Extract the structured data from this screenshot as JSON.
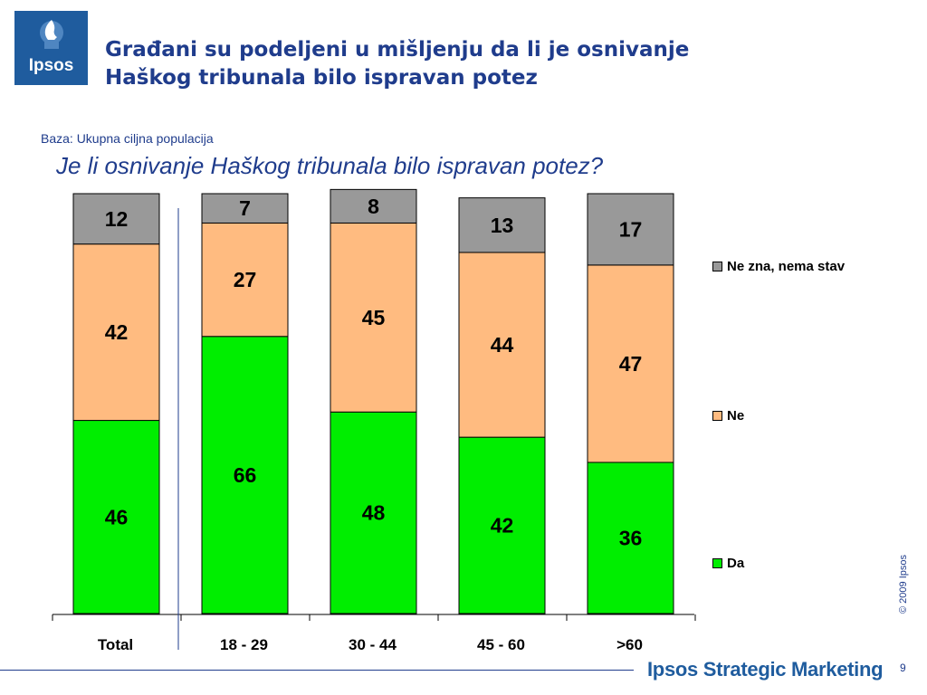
{
  "logo": {
    "text": "Ipsos"
  },
  "slide": {
    "title_line1": "Građani su podeljeni u mišljenju da li je osnivanje",
    "title_line2": "Haškog tribunala bilo ispravan potez",
    "base_note": "Baza: Ukupna ciljna populacija",
    "question": "Je li osnivanje Haškog tribunala bilo ispravan potez?"
  },
  "chart_data": {
    "type": "bar",
    "stacked": true,
    "percent_stacked": true,
    "categories": [
      "Total",
      "18 - 29",
      "30 - 44",
      "45 - 60",
      ">60"
    ],
    "series": [
      {
        "name": "Da",
        "values": [
          46,
          66,
          48,
          42,
          36
        ],
        "color": "#00ee00"
      },
      {
        "name": "Ne",
        "values": [
          42,
          27,
          45,
          44,
          47
        ],
        "color": "#ffbb80"
      },
      {
        "name": "Ne zna, nema stav",
        "values": [
          12,
          7,
          8,
          13,
          17
        ],
        "color": "#999999"
      }
    ],
    "ylim": [
      0,
      100
    ],
    "grid": false,
    "legend_position": "right",
    "data_labels": true
  },
  "footer": {
    "copyright": "© 2009 Ipsos",
    "brand": "Ipsos Strategic Marketing",
    "page": "9"
  }
}
